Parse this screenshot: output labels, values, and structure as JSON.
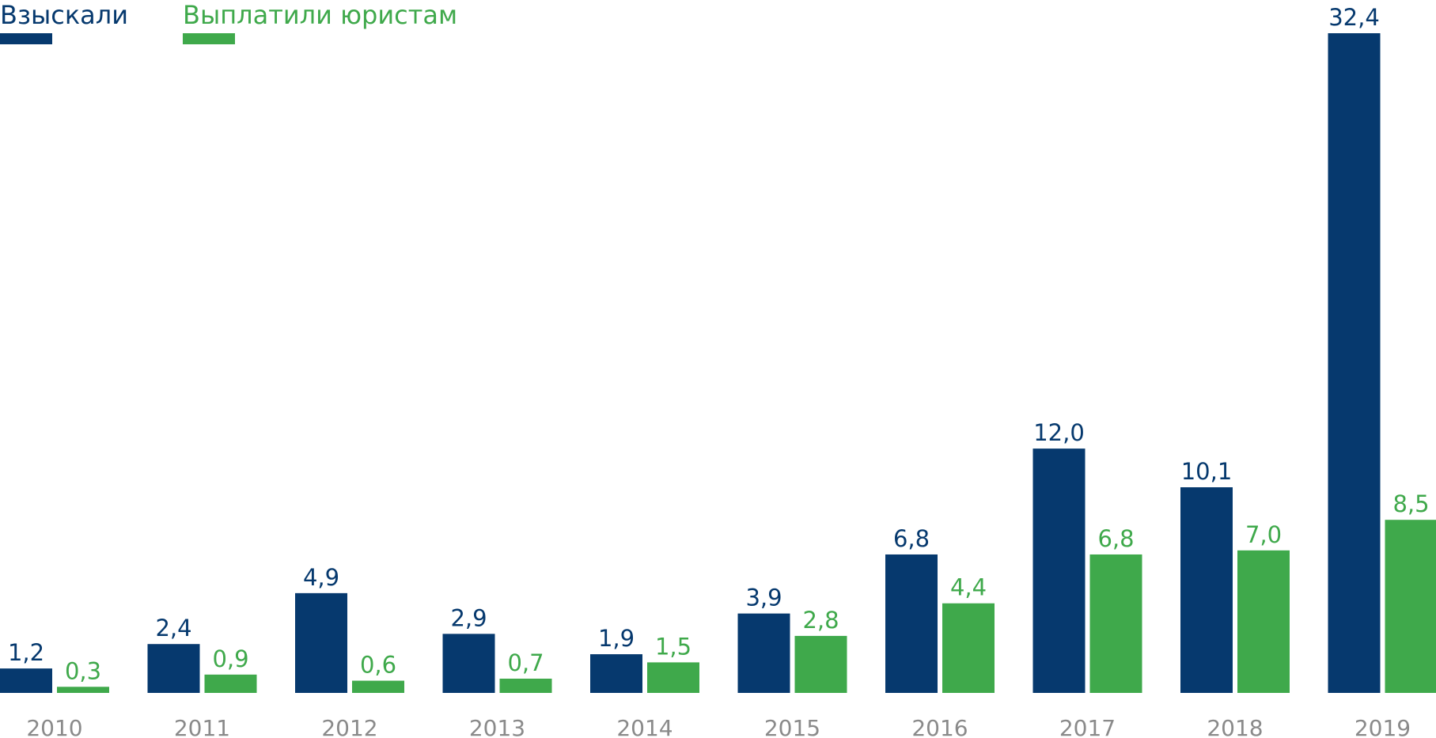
{
  "chart_data": {
    "type": "bar",
    "title": "",
    "xlabel": "",
    "ylabel": "",
    "categories": [
      "2010",
      "2011",
      "2012",
      "2013",
      "2014",
      "2015",
      "2016",
      "2017",
      "2018",
      "2019"
    ],
    "series": [
      {
        "name": "Взыскали",
        "color": "#06396e",
        "values": [
          1.2,
          2.4,
          4.9,
          2.9,
          1.9,
          3.9,
          6.8,
          12.0,
          10.1,
          32.4
        ],
        "labels": [
          "1,2",
          "2,4",
          "4,9",
          "2,9",
          "1,9",
          "3,9",
          "6,8",
          "12,0",
          "10,1",
          "32,4"
        ]
      },
      {
        "name": "Выплатили юристам",
        "color": "#3fa94b",
        "values": [
          0.3,
          0.9,
          0.6,
          0.7,
          1.5,
          2.8,
          4.4,
          6.8,
          7.0,
          8.5
        ],
        "labels": [
          "0,3",
          "0,9",
          "0,6",
          "0,7",
          "1,5",
          "2,8",
          "4,4",
          "6,8",
          "7,0",
          "8,5"
        ]
      }
    ],
    "ylim": [
      0,
      32.4
    ],
    "grid": false,
    "legend": "top-left"
  }
}
